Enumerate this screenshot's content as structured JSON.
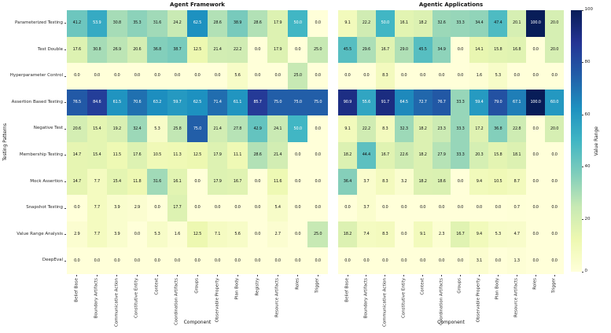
{
  "figure": {
    "colorbar": {
      "label": "Value Range",
      "ticks": [
        0,
        20,
        40,
        60,
        80,
        100
      ],
      "vmin": 0,
      "vmax": 100,
      "colormap": "YlGnBu",
      "stops": [
        "#ffffd9",
        "#edf8b1",
        "#c7e9b4",
        "#7fcdbb",
        "#41b6c4",
        "#1d91c0",
        "#225ea8",
        "#253494",
        "#081d58"
      ]
    }
  },
  "chart_data": [
    {
      "type": "heatmap",
      "title": "Agent Framework",
      "xlabel": "Component",
      "ylabel": "Testing Patterns",
      "vmin": 0,
      "vmax": 100,
      "columns": [
        "Belief Base",
        "Boundary Artifacts",
        "Communicative Action",
        "Constitutive Entity",
        "Context",
        "Coordination Artifacts",
        "Groups",
        "Observable Property",
        "Plan Body",
        "Registry",
        "Resource Artifacts",
        "Roles",
        "Trigger"
      ],
      "rows": [
        "Parameterized Testing",
        "Test Double",
        "Hyperparameter Control",
        "Assertion Based Testing",
        "Negative Test",
        "Membership Testing",
        "Mock Assertion",
        "Snapshot Testing",
        "Value Range Analysis",
        "DeepEval"
      ],
      "values": [
        [
          41.2,
          53.9,
          30.8,
          35.3,
          31.6,
          24.2,
          62.5,
          28.6,
          38.9,
          28.6,
          17.9,
          50.0,
          0.0
        ],
        [
          17.6,
          30.8,
          26.9,
          20.6,
          36.8,
          38.7,
          12.5,
          21.4,
          22.2,
          0.0,
          17.9,
          0.0,
          25.0
        ],
        [
          0.0,
          0.0,
          0.0,
          0.0,
          0.0,
          0.0,
          0.0,
          0.0,
          5.6,
          0.0,
          0.0,
          25.0,
          0.0
        ],
        [
          76.5,
          84.6,
          61.5,
          70.6,
          63.2,
          59.7,
          62.5,
          71.4,
          61.1,
          85.7,
          75.0,
          75.0,
          75.0
        ],
        [
          20.6,
          15.4,
          19.2,
          32.4,
          5.3,
          25.8,
          75.0,
          21.4,
          27.8,
          42.9,
          24.1,
          50.0,
          0.0
        ],
        [
          14.7,
          15.4,
          11.5,
          17.6,
          10.5,
          11.3,
          12.5,
          17.9,
          11.1,
          28.6,
          21.4,
          0.0,
          0.0
        ],
        [
          14.7,
          7.7,
          15.4,
          11.8,
          31.6,
          16.1,
          0.0,
          17.9,
          16.7,
          0.0,
          11.6,
          0.0,
          0.0
        ],
        [
          0.0,
          7.7,
          3.9,
          2.9,
          0.0,
          17.7,
          0.0,
          0.0,
          0.0,
          0.0,
          5.4,
          0.0,
          0.0
        ],
        [
          2.9,
          7.7,
          3.9,
          0.0,
          5.3,
          1.6,
          12.5,
          7.1,
          5.6,
          0.0,
          2.7,
          0.0,
          25.0
        ],
        [
          0.0,
          0.0,
          0.0,
          0.0,
          0.0,
          0.0,
          0.0,
          0.0,
          0.0,
          0.0,
          0.0,
          0.0,
          0.0
        ]
      ]
    },
    {
      "type": "heatmap",
      "title": "Agentic Applications",
      "xlabel": "Component",
      "ylabel": "",
      "vmin": 0,
      "vmax": 100,
      "columns": [
        "Belief Base",
        "Boundary Artifacts",
        "Communicative Action",
        "Constitutive Entity",
        "Context",
        "Coordination Artifacts",
        "Groups",
        "Observable Property",
        "Plan Body",
        "Resource Artifacts",
        "Roles",
        "Trigger"
      ],
      "rows": [
        "Parameterized Testing",
        "Test Double",
        "Hyperparameter Control",
        "Assertion Based Testing",
        "Negative Test",
        "Membership Testing",
        "Mock Assertion",
        "Snapshot Testing",
        "Value Range Analysis",
        "DeepEval"
      ],
      "values": [
        [
          9.1,
          22.2,
          50.0,
          16.1,
          18.2,
          32.6,
          33.3,
          34.4,
          47.4,
          20.1,
          100.0,
          20.0
        ],
        [
          45.5,
          29.6,
          16.7,
          29.0,
          45.5,
          34.9,
          0.0,
          14.1,
          15.8,
          16.8,
          0.0,
          20.0
        ],
        [
          0.0,
          0.0,
          8.3,
          0.0,
          0.0,
          0.0,
          0.0,
          1.6,
          5.3,
          0.0,
          0.0,
          0.0
        ],
        [
          90.9,
          55.6,
          91.7,
          64.5,
          72.7,
          76.7,
          33.3,
          59.4,
          79.0,
          67.1,
          100.0,
          60.0
        ],
        [
          9.1,
          22.2,
          8.3,
          32.3,
          18.2,
          23.3,
          33.3,
          17.2,
          36.8,
          22.8,
          0.0,
          20.0
        ],
        [
          18.2,
          44.4,
          16.7,
          22.6,
          18.2,
          27.9,
          33.3,
          20.3,
          15.8,
          18.1,
          0.0,
          0.0
        ],
        [
          36.4,
          3.7,
          8.3,
          3.2,
          18.2,
          18.6,
          0.0,
          9.4,
          10.5,
          8.7,
          0.0,
          0.0
        ],
        [
          0.0,
          3.7,
          0.0,
          0.0,
          0.0,
          0.0,
          0.0,
          0.0,
          0.0,
          0.7,
          0.0,
          0.0
        ],
        [
          18.2,
          7.4,
          8.3,
          0.0,
          9.1,
          2.3,
          16.7,
          9.4,
          5.3,
          4.7,
          0.0,
          0.0
        ],
        [
          0.0,
          0.0,
          0.0,
          0.0,
          0.0,
          0.0,
          0.0,
          3.1,
          0.0,
          1.3,
          0.0,
          0.0
        ]
      ]
    }
  ]
}
